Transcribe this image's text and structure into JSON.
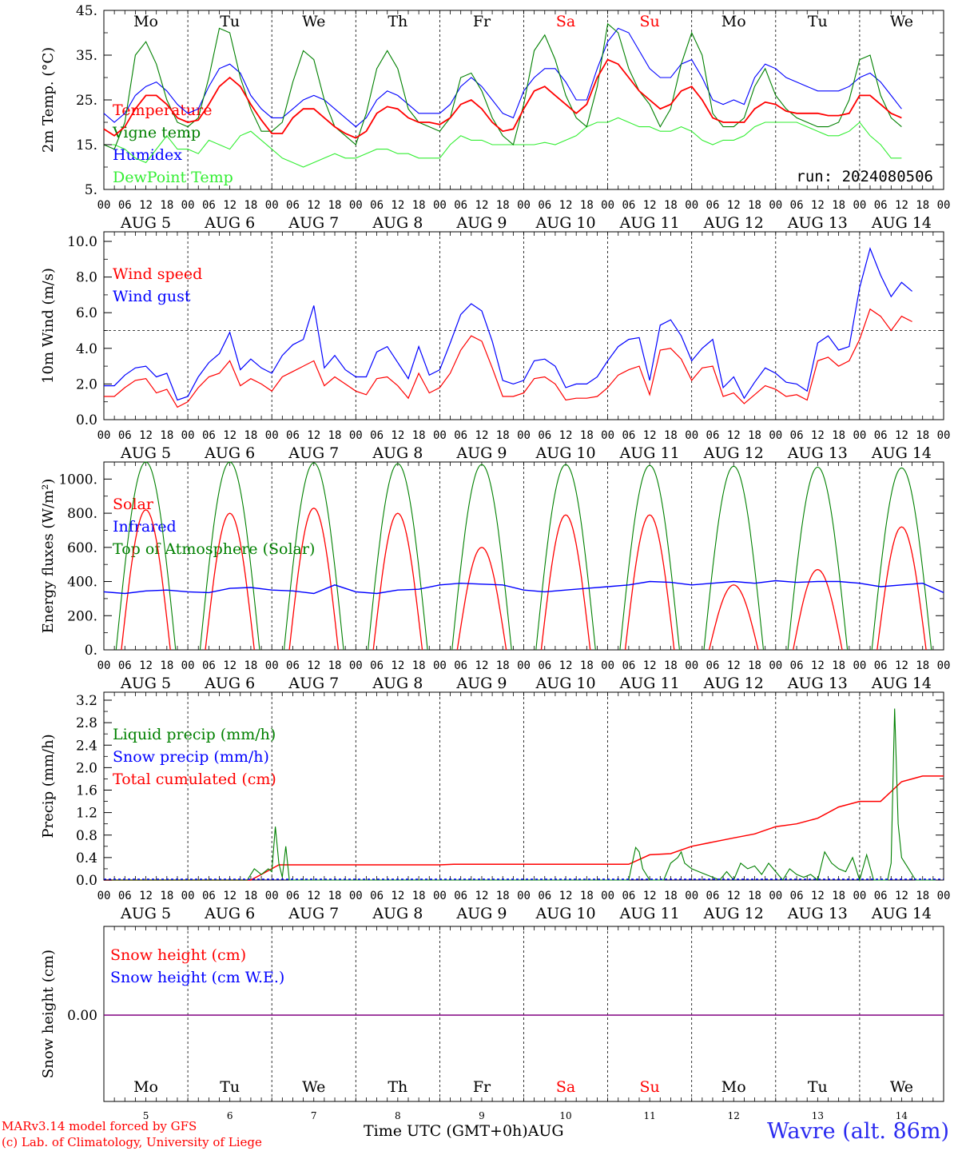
{
  "days": [
    {
      "weekday": "Mo",
      "date": "AUG 5",
      "day_num": "5",
      "weekend": false
    },
    {
      "weekday": "Tu",
      "date": "AUG 6",
      "day_num": "6",
      "weekend": false
    },
    {
      "weekday": "We",
      "date": "AUG 7",
      "day_num": "7",
      "weekend": false
    },
    {
      "weekday": "Th",
      "date": "AUG 8",
      "day_num": "8",
      "weekend": false
    },
    {
      "weekday": "Fr",
      "date": "AUG 9",
      "day_num": "9",
      "weekend": false
    },
    {
      "weekday": "Sa",
      "date": "AUG 10",
      "day_num": "10",
      "weekend": true
    },
    {
      "weekday": "Su",
      "date": "AUG 11",
      "day_num": "11",
      "weekend": true
    },
    {
      "weekday": "Mo",
      "date": "AUG 12",
      "day_num": "12",
      "weekend": false
    },
    {
      "weekday": "Tu",
      "date": "AUG 13",
      "day_num": "13",
      "weekend": false
    },
    {
      "weekday": "We",
      "date": "AUG 14",
      "day_num": "14",
      "weekend": false
    }
  ],
  "hour_labels": [
    "00",
    "06",
    "12",
    "18"
  ],
  "footer": {
    "credit_line1": "MARv3.14 model forced by GFS",
    "credit_line2": "(c) Lab. of Climatology, University of Liege",
    "xlabel": "Time UTC (GMT+0h)",
    "month": "AUG",
    "location": "Wavre (alt. 86m)"
  },
  "colors": {
    "red": "#ff0000",
    "blue": "#0000ff",
    "green": "#008000",
    "lightgreen": "#33ee33",
    "purple": "#800080",
    "weekend": "#ff0000"
  },
  "chart_data": [
    {
      "type": "line",
      "id": "temp",
      "ylabel": "2m Temp. (°C)",
      "yticks": [
        "5.",
        "15.",
        "25.",
        "35.",
        "45."
      ],
      "ylim": [
        5,
        45
      ],
      "annotation": "run: 2024080506",
      "legend": [
        {
          "label": "Temperature",
          "color": "#ff0000"
        },
        {
          "label": "Vigne temp",
          "color": "#008000"
        },
        {
          "label": "Humidex",
          "color": "#0000ff"
        },
        {
          "label": "DewPoint Temp",
          "color": "#33ee33"
        }
      ],
      "x_hours": [
        0,
        3,
        6,
        9,
        12,
        15,
        18,
        21,
        24,
        27,
        30,
        33,
        36,
        39,
        42,
        45,
        48,
        51,
        54,
        57,
        60,
        63,
        66,
        69,
        72,
        75,
        78,
        81,
        84,
        87,
        90,
        93,
        96,
        99,
        102,
        105,
        108,
        111,
        114,
        117,
        120,
        123,
        126,
        129,
        132,
        135,
        138,
        141,
        144,
        147,
        150,
        153,
        156,
        159,
        162,
        165,
        168,
        171,
        174,
        177,
        180,
        183,
        186,
        189,
        192,
        195,
        198,
        201,
        204,
        207,
        210,
        213,
        216,
        219,
        222,
        225,
        228,
        231,
        234,
        237,
        240
      ],
      "series": [
        {
          "name": "Temperature",
          "color": "#ff0000",
          "values": [
            18.5,
            17,
            19,
            23,
            26,
            26,
            24,
            21,
            20,
            20.5,
            24,
            28,
            30,
            28,
            24,
            20.5,
            17.5,
            17.5,
            21,
            23,
            23,
            21,
            19,
            17.5,
            16.5,
            18,
            22,
            23.5,
            23,
            21,
            20,
            20,
            19.5,
            21,
            24,
            25,
            23,
            20,
            18,
            18.5,
            23,
            27,
            28,
            26,
            24,
            22,
            24,
            30,
            34,
            33,
            30,
            27,
            25,
            23,
            24,
            27,
            28,
            25,
            21,
            20,
            20,
            20,
            23,
            24.5,
            24,
            22.5,
            22,
            22,
            22,
            21.5,
            21.5,
            22,
            26,
            26,
            24,
            22,
            21
          ]
        },
        {
          "name": "Vigne temp",
          "color": "#008000",
          "values": [
            15,
            14,
            20,
            35,
            38,
            33,
            25,
            20,
            19,
            21,
            30,
            41,
            40,
            30,
            23,
            18,
            18,
            20,
            29,
            36,
            34,
            25,
            19,
            17,
            15,
            22,
            32,
            36,
            32,
            23,
            20,
            19,
            18,
            21,
            30,
            31,
            27,
            21,
            17,
            15,
            24,
            36,
            39.5,
            34,
            26,
            21,
            19,
            28,
            42,
            40,
            32,
            27,
            24,
            19,
            23,
            33,
            40,
            35,
            22,
            19,
            19,
            21,
            28,
            32,
            26,
            23,
            21,
            20,
            19,
            19,
            20,
            25,
            34,
            35,
            26,
            21,
            19
          ]
        },
        {
          "name": "Humidex",
          "color": "#0000ff",
          "values": [
            22,
            20,
            22,
            26,
            28,
            29,
            27,
            24,
            22,
            23,
            28,
            32,
            33,
            31,
            26,
            23,
            21,
            21,
            23,
            25,
            26,
            25,
            23,
            21,
            19,
            21,
            25,
            27,
            26,
            24,
            22,
            22,
            22,
            24,
            28,
            30,
            28,
            25,
            22,
            21,
            27,
            30,
            32,
            32,
            29,
            25,
            25,
            32,
            38,
            41,
            40,
            36,
            32,
            30,
            30,
            33,
            34,
            30,
            25,
            24,
            25,
            24,
            30,
            33,
            32,
            30,
            29,
            28,
            27,
            27,
            27,
            28,
            30,
            31,
            29,
            26,
            23
          ]
        },
        {
          "name": "DewPoint Temp",
          "color": "#33ee33",
          "values": [
            15,
            15,
            14,
            12,
            11,
            14,
            17,
            14,
            14,
            13,
            16,
            15,
            14,
            17,
            18,
            16,
            14,
            12,
            11,
            10,
            11,
            12,
            13,
            12,
            12,
            13,
            14,
            14,
            13,
            13,
            12,
            12,
            12,
            15,
            17,
            16,
            16,
            15,
            15,
            15,
            15,
            15,
            15.5,
            15,
            16,
            17,
            19,
            20,
            20,
            21,
            20,
            19,
            19,
            18,
            18,
            19,
            18,
            16,
            15,
            16,
            16,
            17,
            19,
            20,
            20,
            20,
            20,
            19,
            18,
            17,
            17,
            18,
            20,
            17,
            15,
            12,
            12
          ]
        }
      ]
    },
    {
      "type": "line",
      "id": "wind",
      "ylabel": "10m Wind (m/s)",
      "yticks": [
        "0.0",
        "2.0",
        "4.0",
        "6.0",
        "8.0",
        "10.0"
      ],
      "ylim": [
        0,
        10
      ],
      "ref_line": 5,
      "legend": [
        {
          "label": "Wind speed",
          "color": "#ff0000"
        },
        {
          "label": "Wind gust",
          "color": "#0000ff"
        }
      ],
      "x_hours": [
        0,
        3,
        6,
        9,
        12,
        15,
        18,
        21,
        24,
        27,
        30,
        33,
        36,
        39,
        42,
        45,
        48,
        51,
        54,
        57,
        60,
        63,
        66,
        69,
        72,
        75,
        78,
        81,
        84,
        87,
        90,
        93,
        96,
        99,
        102,
        105,
        108,
        111,
        114,
        117,
        120,
        123,
        126,
        129,
        132,
        135,
        138,
        141,
        144,
        147,
        150,
        153,
        156,
        159,
        162,
        165,
        168,
        171,
        174,
        177,
        180,
        183,
        186,
        189,
        192,
        195,
        198,
        201,
        204,
        207,
        210,
        213,
        216,
        219,
        222,
        225,
        228,
        231,
        234,
        237,
        240
      ],
      "series": [
        {
          "name": "Wind speed",
          "color": "#ff0000",
          "values": [
            1.3,
            1.3,
            1.8,
            2.2,
            2.3,
            1.5,
            1.7,
            0.7,
            1.0,
            1.8,
            2.4,
            2.6,
            3.3,
            1.9,
            2.3,
            2.0,
            1.6,
            2.4,
            2.7,
            3.0,
            3.3,
            1.9,
            2.4,
            2.0,
            1.6,
            1.4,
            2.3,
            2.4,
            1.9,
            1.2,
            2.6,
            1.5,
            1.8,
            2.6,
            3.9,
            4.7,
            4.4,
            2.9,
            1.3,
            1.3,
            1.5,
            2.3,
            2.4,
            2.0,
            1.1,
            1.2,
            1.2,
            1.3,
            1.8,
            2.5,
            2.8,
            3.0,
            1.4,
            3.9,
            4.0,
            3.4,
            2.2,
            2.9,
            3.0,
            1.3,
            1.5,
            0.9,
            1.4,
            1.9,
            1.7,
            1.3,
            1.4,
            1.1,
            3.3,
            3.5,
            3.0,
            3.3,
            4.5,
            6.2,
            5.8,
            5.0,
            5.8,
            5.5
          ]
        },
        {
          "name": "Wind gust",
          "color": "#0000ff",
          "values": [
            1.9,
            1.9,
            2.5,
            2.9,
            3.0,
            2.4,
            2.6,
            1.1,
            1.3,
            2.4,
            3.2,
            3.7,
            4.9,
            2.8,
            3.4,
            2.9,
            2.6,
            3.6,
            4.2,
            4.5,
            6.4,
            2.9,
            3.6,
            2.8,
            2.4,
            2.4,
            3.8,
            4.1,
            3.2,
            2.3,
            4.1,
            2.5,
            2.8,
            4.3,
            5.9,
            6.5,
            6.1,
            4.4,
            2.2,
            2.0,
            2.2,
            3.3,
            3.4,
            3.0,
            1.8,
            2.0,
            2.0,
            2.4,
            3.3,
            4.1,
            4.5,
            4.6,
            2.2,
            5.3,
            5.6,
            4.7,
            3.3,
            4.0,
            4.5,
            1.8,
            2.4,
            1.2,
            2.1,
            2.9,
            2.6,
            2.1,
            2.0,
            1.6,
            4.3,
            4.7,
            3.9,
            4.1,
            7.4,
            9.6,
            8.1,
            6.9,
            7.7,
            7.2
          ]
        }
      ]
    },
    {
      "type": "line",
      "id": "energy",
      "ylabel": "Energy fluxes (W/m²)",
      "yticks": [
        "0.",
        "200.",
        "400.",
        "600.",
        "800.",
        "1000."
      ],
      "ylim": [
        0,
        1100
      ],
      "legend": [
        {
          "label": "Solar",
          "color": "#ff0000"
        },
        {
          "label": "Infrared",
          "color": "#0000ff"
        },
        {
          "label": "Top of Atmosphere (Solar)",
          "color": "#008000"
        }
      ],
      "toa_peaks": [
        1100,
        1100,
        1095,
        1090,
        1085,
        1085,
        1080,
        1075,
        1070,
        1065
      ],
      "solar_peaks": [
        820,
        800,
        830,
        800,
        600,
        790,
        790,
        380,
        470,
        720
      ],
      "infrared": {
        "x_hours": [
          0,
          6,
          12,
          18,
          24,
          30,
          36,
          42,
          48,
          54,
          60,
          66,
          72,
          78,
          84,
          90,
          96,
          102,
          108,
          114,
          120,
          126,
          132,
          138,
          144,
          150,
          156,
          162,
          168,
          174,
          180,
          186,
          192,
          198,
          204,
          210,
          216,
          222,
          228,
          234,
          240
        ],
        "values": [
          340,
          330,
          345,
          350,
          340,
          335,
          360,
          365,
          350,
          345,
          330,
          380,
          340,
          330,
          350,
          355,
          380,
          390,
          385,
          380,
          350,
          340,
          350,
          360,
          370,
          380,
          400,
          395,
          380,
          390,
          400,
          390,
          405,
          395,
          400,
          400,
          390,
          370,
          380,
          390,
          335
        ]
      }
    },
    {
      "type": "line",
      "id": "precip",
      "ylabel": "Precip (mm/h)",
      "yticks": [
        "0.0",
        "0.4",
        "0.8",
        "1.2",
        "1.6",
        "2.0",
        "2.4",
        "2.8",
        "3.2"
      ],
      "ylim": [
        0,
        3.2
      ],
      "legend": [
        {
          "label": "Liquid precip (mm/h)",
          "color": "#008000"
        },
        {
          "label": "Snow precip (mm/h)",
          "color": "#0000ff"
        },
        {
          "label": "Total cumulated (cm)",
          "color": "#ff0000"
        }
      ],
      "series": [
        {
          "name": "Total cumulated (cm)",
          "color": "#ff0000",
          "x": [
            0,
            42,
            45,
            48,
            50,
            54,
            60,
            96,
            100,
            120,
            150,
            156,
            162,
            168,
            180,
            186,
            192,
            198,
            204,
            210,
            216,
            222,
            228,
            234,
            240
          ],
          "values": [
            0,
            0,
            0.1,
            0.2,
            0.27,
            0.27,
            0.27,
            0.27,
            0.28,
            0.28,
            0.28,
            0.45,
            0.47,
            0.6,
            0.75,
            0.82,
            0.95,
            1.0,
            1.1,
            1.3,
            1.4,
            1.4,
            1.75,
            1.85,
            1.85
          ]
        },
        {
          "name": "Liquid precip (mm/h)",
          "color": "#008000",
          "x": [
            0,
            41,
            43,
            45,
            47,
            48,
            49,
            50,
            51,
            52,
            53,
            60,
            150,
            151,
            152,
            153,
            154,
            156,
            160,
            162,
            164,
            165,
            166,
            168,
            170,
            172,
            174,
            176,
            178,
            180,
            182,
            184,
            186,
            188,
            190,
            192,
            194,
            196,
            198,
            200,
            202,
            204,
            206,
            208,
            210,
            212,
            214,
            216,
            218,
            220,
            222,
            224,
            225,
            226,
            227,
            228,
            229,
            230,
            231,
            232,
            240
          ],
          "values": [
            0,
            0,
            0.2,
            0.1,
            0.2,
            0.15,
            0.95,
            0.3,
            0.05,
            0.6,
            0,
            0,
            0,
            0.3,
            0.58,
            0.5,
            0.2,
            0,
            0,
            0.3,
            0.4,
            0.5,
            0.3,
            0.2,
            0.15,
            0.1,
            0.05,
            0,
            0.15,
            0,
            0.3,
            0.2,
            0.25,
            0.1,
            0.3,
            0.15,
            0,
            0.2,
            0.1,
            0.05,
            0.1,
            0,
            0.5,
            0.3,
            0.2,
            0.15,
            0.4,
            0,
            0.45,
            0,
            0,
            0,
            0.3,
            3.05,
            1.0,
            0.4,
            0.3,
            0.2,
            0.1,
            0,
            0
          ]
        }
      ]
    },
    {
      "type": "line",
      "id": "snow",
      "ylabel": "Snow height (cm)",
      "yticks": [
        "0.00"
      ],
      "legend": [
        {
          "label": "Snow height (cm)",
          "color": "#ff0000"
        },
        {
          "label": "Snow height (cm W.E.)",
          "color": "#0000ff"
        }
      ],
      "series": [
        {
          "name": "Snow height (cm)",
          "color": "#ff0000",
          "values": [
            0,
            0
          ]
        },
        {
          "name": "Snow height (cm W.E.)",
          "color": "#0000ff",
          "values": [
            0,
            0
          ]
        }
      ]
    }
  ]
}
